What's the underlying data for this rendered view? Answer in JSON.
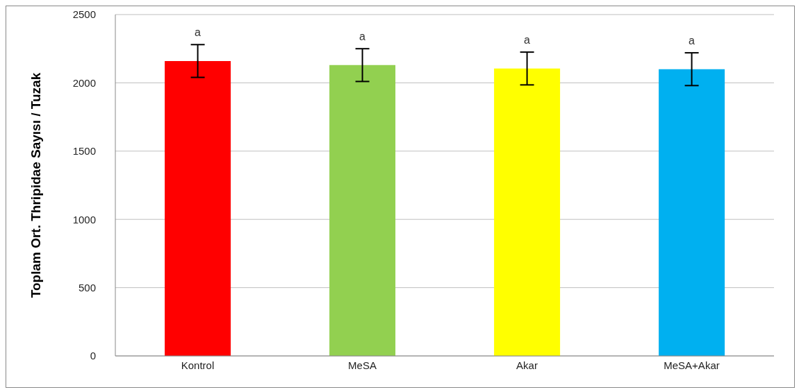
{
  "chart_data": {
    "type": "bar",
    "ylabel": "Toplam Ort. Thripidae Sayısı / Tuzak",
    "categories": [
      "Kontrol",
      "MeSA",
      "Akar",
      "MeSA+Akar"
    ],
    "values": [
      2160,
      2130,
      2105,
      2100
    ],
    "colors": [
      "#ff0000",
      "#92d050",
      "#ffff00",
      "#00b0f0"
    ],
    "errors": [
      120,
      120,
      120,
      120
    ],
    "ylim": [
      0,
      2500
    ],
    "yticks": [
      0,
      500,
      1000,
      1500,
      2000,
      2500
    ],
    "grid": "y",
    "annotations": [
      "a",
      "a",
      "a",
      "a"
    ]
  }
}
